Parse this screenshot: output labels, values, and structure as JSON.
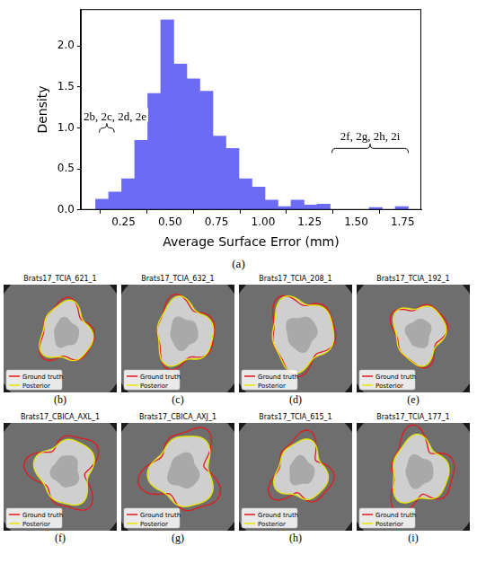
{
  "chart_data": {
    "type": "histogram",
    "x_label": "Average Surface Error (mm)",
    "y_label": "Density",
    "bins": [
      0.1,
      0.17,
      0.24,
      0.31,
      0.38,
      0.45,
      0.52,
      0.59,
      0.66,
      0.73,
      0.8,
      0.87,
      0.94,
      1.01,
      1.08,
      1.15,
      1.22,
      1.29,
      1.36,
      1.43,
      1.5,
      1.57,
      1.64,
      1.71,
      1.78
    ],
    "values": [
      0.13,
      0.22,
      0.38,
      0.85,
      1.42,
      2.32,
      1.78,
      1.6,
      1.45,
      0.9,
      0.75,
      0.38,
      0.28,
      0.12,
      0.04,
      0.12,
      0.06,
      0.07,
      0,
      0,
      0,
      0.03,
      0,
      0.04
    ],
    "color": "#6b6bf5",
    "xlim": [
      0.02,
      1.85
    ],
    "xticks": [
      0.25,
      {
        "value": 0.5,
        "label": "0.50"
      },
      0.75,
      {
        "value": 1,
        "label": "1.00"
      },
      1.25,
      {
        "value": 1.5,
        "label": "1.50"
      },
      1.75
    ],
    "ylim": [
      0,
      2.45
    ],
    "yticks": [
      {
        "value": 0,
        "label": "0.0"
      },
      0.5,
      {
        "value": 1,
        "label": "1.0"
      },
      1.5,
      {
        "value": 2,
        "label": "2.0"
      }
    ],
    "grid": false,
    "annotations": [
      {
        "text": "2b, 2c, 2d, 2e",
        "x": [
          0.12,
          0.2
        ],
        "y": 1.0
      },
      {
        "text": "2f, 2g, 2h, 2i",
        "x": [
          1.37,
          1.78
        ],
        "y": 0.75
      }
    ]
  },
  "chart_caption": "(a)",
  "contours": [
    {
      "name": "Ground truth",
      "color": "#e41a1c"
    },
    {
      "name": "Posterior",
      "color": "#e6e600"
    }
  ],
  "panels": [
    {
      "title": "Brats17_TCIA_621_1",
      "label": "(b)"
    },
    {
      "title": "Brats17_TCIA_632_1",
      "label": "(c)"
    },
    {
      "title": "Brats17_TCIA_208_1",
      "label": "(d)"
    },
    {
      "title": "Brats17_TCIA_192_1",
      "label": "(e)"
    },
    {
      "title": "Brats17_CBICA_AXL_1",
      "label": "(f)"
    },
    {
      "title": "Brats17_CBICA_AXJ_1",
      "label": "(g)"
    },
    {
      "title": "Brats17_TCIA_615_1",
      "label": "(h)"
    },
    {
      "title": "Brats17_TCIA_177_1",
      "label": "(i)"
    }
  ]
}
